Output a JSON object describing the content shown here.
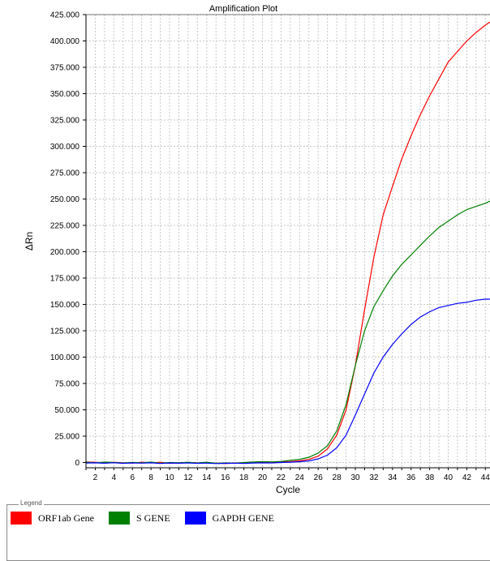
{
  "chart_data": {
    "type": "line",
    "title": "Amplification Plot",
    "xlabel": "Cycle",
    "ylabel": "ΔRn",
    "xlim": [
      1,
      44.5
    ],
    "ylim": [
      -5000,
      425000
    ],
    "x_ticks": [
      2,
      4,
      6,
      8,
      10,
      12,
      14,
      16,
      18,
      20,
      22,
      24,
      26,
      28,
      30,
      32,
      34,
      36,
      38,
      40,
      42,
      44
    ],
    "y_ticks": [
      0,
      25000,
      50000,
      75000,
      100000,
      125000,
      150000,
      175000,
      200000,
      225000,
      250000,
      275000,
      300000,
      325000,
      350000,
      375000,
      400000,
      425000
    ],
    "y_tick_labels": [
      "0",
      "25.000",
      "50.000",
      "75.000",
      "100.000",
      "125.000",
      "150.000",
      "175.000",
      "200.000",
      "225.000",
      "250.000",
      "275.000",
      "300.000",
      "325.000",
      "350.000",
      "375.000",
      "400.000",
      "425.000"
    ],
    "grid": true,
    "legend_position": "bottom",
    "x": [
      1,
      2,
      3,
      4,
      5,
      6,
      7,
      8,
      9,
      10,
      11,
      12,
      13,
      14,
      15,
      16,
      17,
      18,
      19,
      20,
      21,
      22,
      23,
      24,
      25,
      26,
      27,
      28,
      29,
      30,
      31,
      32,
      33,
      34,
      35,
      36,
      37,
      38,
      39,
      40,
      41,
      42,
      43,
      44,
      44.5
    ],
    "series": [
      {
        "name": "ORF1ab Gene",
        "color": "#ff0000",
        "values": [
          500,
          200,
          -300,
          200,
          -200,
          -600,
          300,
          -400,
          200,
          -800,
          -300,
          0,
          -400,
          -200,
          -600,
          -1000,
          -500,
          -300,
          0,
          200,
          -200,
          400,
          800,
          1500,
          3000,
          6000,
          13000,
          26000,
          50000,
          92000,
          145000,
          195000,
          235000,
          262000,
          288000,
          310000,
          330000,
          348000,
          364000,
          380000,
          390000,
          400000,
          408000,
          415000,
          418000
        ]
      },
      {
        "name": "S GENE",
        "color": "#008000",
        "values": [
          300,
          -200,
          400,
          0,
          -500,
          100,
          -300,
          400,
          -600,
          0,
          -200,
          200,
          -500,
          300,
          -800,
          -400,
          -600,
          0,
          500,
          800,
          600,
          1000,
          2000,
          3000,
          5000,
          9000,
          16000,
          30000,
          55000,
          92000,
          125000,
          148000,
          163000,
          177000,
          188000,
          197000,
          206000,
          215000,
          223000,
          229000,
          235000,
          240000,
          243000,
          246000,
          248000
        ]
      },
      {
        "name": "GAPDH GENE",
        "color": "#0000ff",
        "values": [
          -500,
          -300,
          -700,
          -200,
          -800,
          -400,
          -600,
          -300,
          -900,
          -500,
          -700,
          -400,
          -800,
          -600,
          -1000,
          -800,
          -600,
          -900,
          -500,
          -300,
          -400,
          0,
          300,
          800,
          1500,
          3500,
          7000,
          14000,
          26000,
          45000,
          65000,
          85000,
          100000,
          112000,
          122000,
          131000,
          138000,
          143000,
          147000,
          149000,
          151000,
          152000,
          154000,
          155000,
          155000
        ]
      }
    ]
  },
  "legend": {
    "caption": "Legend",
    "items": [
      {
        "label": "ORF1ab Gene",
        "color": "#ff0000"
      },
      {
        "label": "S GENE",
        "color": "#008000"
      },
      {
        "label": "GAPDH GENE",
        "color": "#0000ff"
      }
    ]
  }
}
